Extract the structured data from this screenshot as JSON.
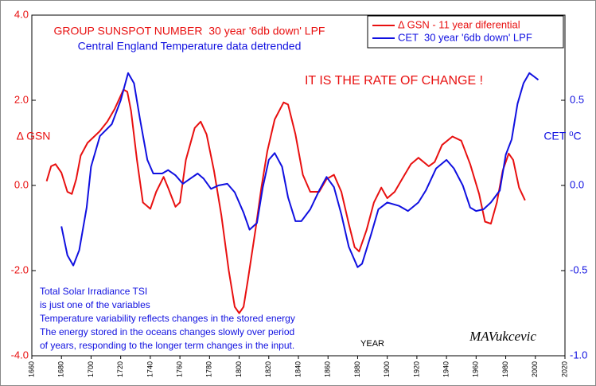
{
  "chart_data": {
    "type": "line",
    "title": "GROUP SUNSPOT NUMBER  30 year '6db down' LPF",
    "subtitle": "Central England Temperature data detrended",
    "annotation": "IT IS THE RATE OF CHANGE !",
    "y_label": "Δ GSN",
    "y2_label": "CET ⁰C",
    "x_label": "YEAR",
    "signature": "MAVukcevic",
    "note_lines": [
      "Total Solar Irradiance TSI",
      "is just one of the variables",
      "Temperature variability reflects changes in the stored energy",
      "The energy stored in the oceans changes slowly over period",
      "of years, responding to the longer term changes in the input."
    ],
    "legend": "top-right",
    "grid": false,
    "xlim": [
      1660,
      2020
    ],
    "xticks": [
      1660,
      1680,
      1700,
      1720,
      1740,
      1760,
      1780,
      1800,
      1820,
      1840,
      1860,
      1880,
      1900,
      1920,
      1940,
      1960,
      1980,
      2000,
      2020
    ],
    "ylim": [
      -4,
      4
    ],
    "yticks": [
      {
        "value": 4,
        "label": "4.0"
      },
      {
        "value": 2,
        "label": "2.0"
      },
      {
        "value": 0,
        "label": "0.0"
      },
      {
        "value": -2,
        "label": "-2.0"
      },
      {
        "value": -4,
        "label": "-4.0"
      }
    ],
    "y2lim": [
      -1,
      1
    ],
    "y2ticks": [
      {
        "value": 0.5,
        "label": "0.5"
      },
      {
        "value": 0,
        "label": "0.0"
      },
      {
        "value": -0.5,
        "label": "-0.5"
      },
      {
        "value": -1,
        "label": "-1.0"
      }
    ],
    "series": [
      {
        "name": "Δ GSN - 11 year diferential",
        "color": "#e81010",
        "x": [
          1670,
          1673,
          1676,
          1680,
          1684,
          1687,
          1690,
          1693,
          1697.6,
          1705.7,
          1711,
          1716,
          1721.9,
          1724.5,
          1727,
          1731,
          1735,
          1740,
          1744,
          1749,
          1752,
          1757,
          1760,
          1764,
          1770,
          1774,
          1778,
          1783,
          1788,
          1793,
          1797,
          1800,
          1803,
          1806,
          1811,
          1815,
          1819,
          1824,
          1830,
          1833,
          1838,
          1843,
          1848,
          1854,
          1859,
          1864,
          1869,
          1874,
          1878,
          1881,
          1886,
          1891,
          1896,
          1900,
          1905,
          1910,
          1916,
          1921,
          1928,
          1932,
          1937,
          1944,
          1950,
          1956,
          1962,
          1966,
          1970,
          1974,
          1978,
          1982,
          1985,
          1989,
          1993
        ],
        "values": [
          0.1,
          0.45,
          0.5,
          0.3,
          -0.15,
          -0.2,
          0.15,
          0.7,
          1.0,
          1.27,
          1.5,
          1.8,
          2.25,
          2.2,
          1.75,
          0.6,
          -0.4,
          -0.55,
          -0.15,
          0.2,
          -0.05,
          -0.5,
          -0.4,
          0.6,
          1.35,
          1.5,
          1.2,
          0.35,
          -0.7,
          -2.0,
          -2.85,
          -3.0,
          -2.85,
          -2.2,
          -1.05,
          -0.05,
          0.8,
          1.55,
          1.95,
          1.9,
          1.2,
          0.25,
          -0.15,
          -0.15,
          0.15,
          0.25,
          -0.15,
          -0.9,
          -1.45,
          -1.55,
          -1.05,
          -0.4,
          -0.05,
          -0.3,
          -0.15,
          0.15,
          0.5,
          0.65,
          0.45,
          0.55,
          0.95,
          1.15,
          1.05,
          0.5,
          -0.2,
          -0.85,
          -0.9,
          -0.4,
          0.35,
          0.75,
          0.6,
          -0.05,
          -0.35
        ]
      },
      {
        "name": "CET  30 year '6db down' LPF",
        "color": "#1010e0",
        "axis": "y2",
        "x": [
          1680,
          1684,
          1688,
          1692,
          1697,
          1700,
          1706,
          1714,
          1720,
          1725,
          1729,
          1733,
          1738,
          1742,
          1748,
          1752,
          1757,
          1762,
          1767,
          1772,
          1776,
          1781,
          1786,
          1792,
          1797,
          1803,
          1807,
          1812,
          1816,
          1820,
          1824,
          1829,
          1833,
          1838,
          1842,
          1848,
          1854,
          1859,
          1864,
          1869,
          1874,
          1880,
          1883,
          1889,
          1894,
          1900,
          1908,
          1914,
          1921,
          1926,
          1933,
          1940,
          1945,
          1951,
          1956,
          1960,
          1965,
          1970,
          1976,
          1980,
          1984,
          1988,
          1992,
          1996,
          1999,
          2002
        ],
        "values": [
          -0.24,
          -0.41,
          -0.47,
          -0.38,
          -0.13,
          0.11,
          0.29,
          0.36,
          0.5,
          0.66,
          0.6,
          0.39,
          0.15,
          0.07,
          0.07,
          0.09,
          0.06,
          0.01,
          0.04,
          0.07,
          0.04,
          -0.02,
          0.0,
          0.01,
          -0.04,
          -0.16,
          -0.26,
          -0.22,
          -0.01,
          0.15,
          0.19,
          0.11,
          -0.07,
          -0.21,
          -0.21,
          -0.14,
          -0.03,
          0.05,
          -0.01,
          -0.17,
          -0.36,
          -0.48,
          -0.46,
          -0.29,
          -0.14,
          -0.1,
          -0.12,
          -0.15,
          -0.1,
          -0.03,
          0.1,
          0.15,
          0.1,
          0.0,
          -0.13,
          -0.15,
          -0.14,
          -0.1,
          -0.03,
          0.18,
          0.27,
          0.48,
          0.6,
          0.66,
          0.64,
          0.62
        ]
      }
    ]
  }
}
